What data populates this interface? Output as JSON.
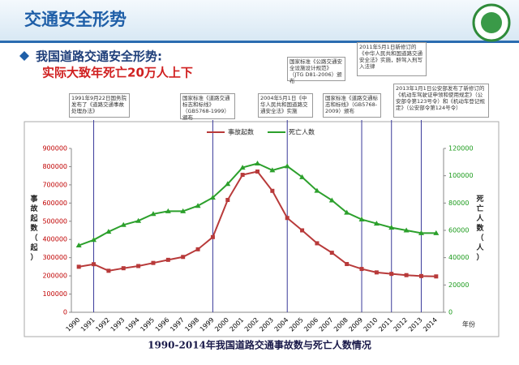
{
  "header": {
    "title": "交通安全形势"
  },
  "subtitle": {
    "line1": "我国道路交通安全形势:",
    "line2": "实际大致年死亡20万人上下"
  },
  "annotations": [
    {
      "text": "1991年9月22日国务院发布了《道路交通事故处理办法》",
      "at": "1991"
    },
    {
      "text": "国家标准《道路交通标志和标线》（GB5768-1999）颁布",
      "at": "1999"
    },
    {
      "text": "2004年5月1日《中华人民共和国道路交通安全法》实施",
      "at": "2004"
    },
    {
      "text": "国家标准《公路交通安全设施设计规范》（JTG D81-2006）颁布",
      "at": "2006"
    },
    {
      "text": "国家标准《道路交通标志和标线》（GB5768-2009）颁布",
      "at": "2009"
    },
    {
      "text": "2011年5月1日新修订的《中华人民共和国道路交通安全法》实施，醉驾入刑写入法律",
      "at": "2011"
    },
    {
      "text": "2013年1月1日公安部发布了新修订的《机动车驾驶证申领和使用规定》（公安部令第123号令）和《机动车登记规定》（公安部令第124号令）",
      "at": "2013"
    }
  ],
  "chart_data": {
    "type": "line",
    "title": "1990-2014年我国道路交通事故数与死亡人数情况",
    "y_label": "事故起数（起）",
    "y2_label": "死亡人数（人）",
    "x_label": "年份",
    "categories": [
      "1990",
      "1991",
      "1992",
      "1993",
      "1994",
      "1995",
      "1996",
      "1997",
      "1998",
      "1999",
      "2000",
      "2001",
      "2002",
      "2003",
      "2004",
      "2005",
      "2006",
      "2007",
      "2008",
      "2009",
      "2010",
      "2011",
      "2012",
      "2013",
      "2014"
    ],
    "series": [
      {
        "name": "事故起数",
        "color": "#b83a3a",
        "values": [
          250000,
          264000,
          228000,
          242000,
          254000,
          271000,
          288000,
          304000,
          346000,
          413000,
          617000,
          755000,
          773000,
          667000,
          518000,
          450000,
          379000,
          327000,
          265000,
          238000,
          219000,
          211000,
          204000,
          199000,
          197000
        ]
      },
      {
        "name": "死亡人数",
        "color": "#2ca02c",
        "axis": "y2",
        "values": [
          49000,
          53000,
          59000,
          64000,
          67000,
          72000,
          74000,
          74000,
          78000,
          84000,
          94000,
          106000,
          109000,
          104000,
          107000,
          99000,
          89000,
          82000,
          73000,
          68000,
          65000,
          62000,
          60000,
          58000,
          58000
        ]
      }
    ],
    "ylim": [
      0,
      900000
    ],
    "yticks": [
      0,
      100000,
      200000,
      300000,
      400000,
      500000,
      600000,
      700000,
      800000,
      900000
    ],
    "y2lim": [
      0,
      120000
    ],
    "y2ticks": [
      0,
      20000,
      40000,
      60000,
      80000,
      100000,
      120000
    ],
    "grid": false
  }
}
